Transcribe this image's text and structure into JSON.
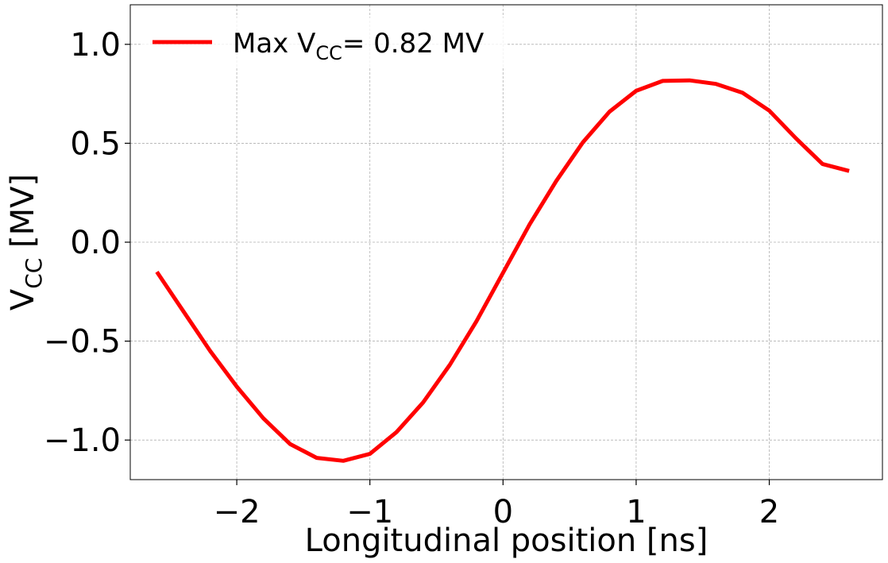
{
  "chart_data": {
    "type": "line",
    "xlabel": "Longitudinal position [ns]",
    "ylabel": {
      "main": "V",
      "sub": "CC",
      "unit": " [MV]"
    },
    "xlim": [
      -2.8,
      2.85
    ],
    "ylim": [
      -1.2,
      1.2
    ],
    "xticks": [
      -2,
      -1,
      0,
      1,
      2
    ],
    "xtick_labels": [
      "−2",
      "−1",
      "0",
      "1",
      "2"
    ],
    "yticks": [
      1.0,
      0.5,
      0.0,
      -0.5,
      -1.0
    ],
    "ytick_labels": [
      "1.0",
      "0.5",
      "0.0",
      "−0.5",
      "−1.0"
    ],
    "grid": true,
    "legend_position": "top-left",
    "series": [
      {
        "name": {
          "prefix": "Max V",
          "sub": "CC",
          "suffix": "= 0.82 MV"
        },
        "color": "#ff0000",
        "x": [
          -2.6,
          -2.4,
          -2.2,
          -2.0,
          -1.8,
          -1.6,
          -1.4,
          -1.2,
          -1.0,
          -0.8,
          -0.6,
          -0.4,
          -0.2,
          0.0,
          0.2,
          0.4,
          0.6,
          0.8,
          1.0,
          1.2,
          1.4,
          1.6,
          1.8,
          2.0,
          2.2,
          2.4,
          2.6
        ],
        "y": [
          -0.15,
          -0.35,
          -0.55,
          -0.73,
          -0.89,
          -1.02,
          -1.09,
          -1.105,
          -1.07,
          -0.96,
          -0.81,
          -0.62,
          -0.4,
          -0.155,
          0.09,
          0.31,
          0.505,
          0.66,
          0.765,
          0.815,
          0.818,
          0.8,
          0.755,
          0.665,
          0.525,
          0.395,
          0.36
        ]
      }
    ]
  }
}
